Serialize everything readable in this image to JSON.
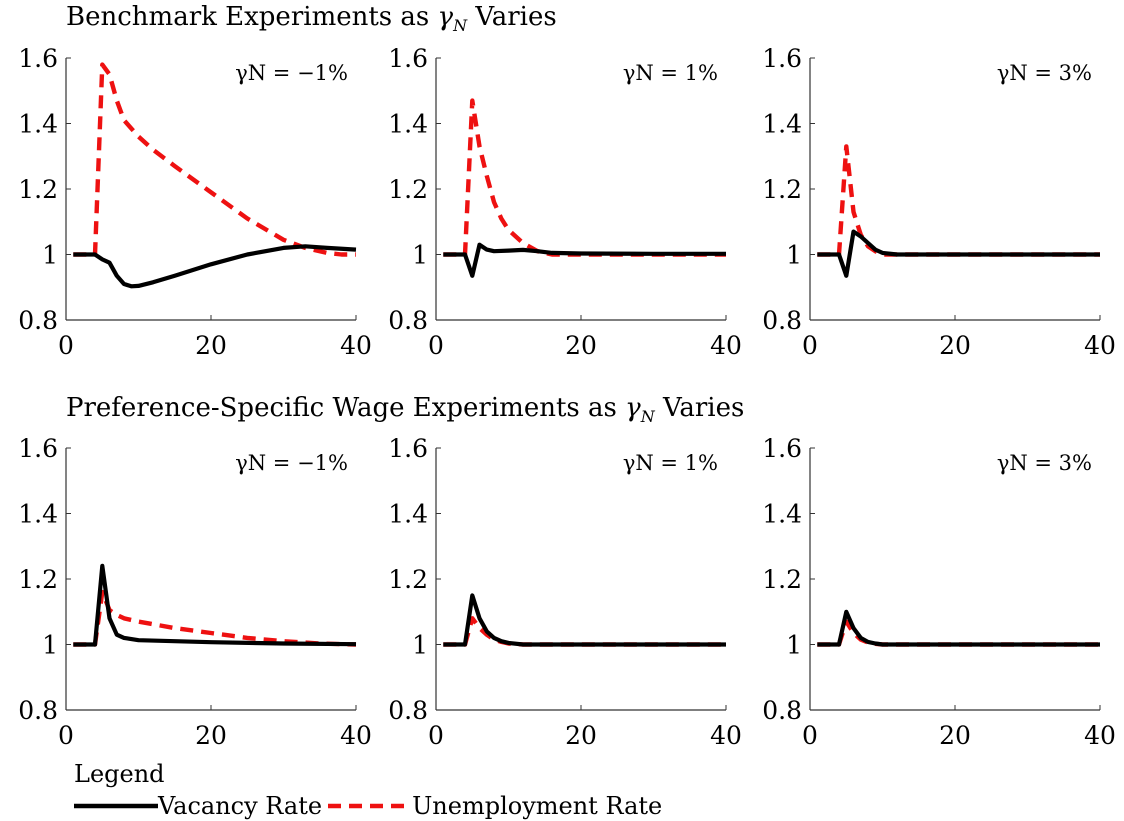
{
  "legend_title": "Legend",
  "legend_items": [
    "Vacancy Rate",
    "Unemployment Rate"
  ],
  "row_titles": [
    {
      "prefix": "Benchmark Experiments as",
      "suffix": "Varies"
    },
    {
      "prefix": "Preference-Specific Wage Experiments as",
      "suffix": "Varies"
    }
  ],
  "colors": {
    "vacancy": "#000000",
    "unemployment": "#ee1111"
  },
  "chart_data": [
    {
      "type": "line",
      "title": "",
      "annotation": "γN = −1%",
      "xlim": [
        0,
        40
      ],
      "ylim": [
        0.8,
        1.6
      ],
      "xticks": [
        0,
        20,
        40
      ],
      "yticks": [
        "0.8",
        "1",
        "1.2",
        "1.4",
        "1.6"
      ],
      "series": [
        {
          "name": "Vacancy Rate",
          "x": [
            1,
            4,
            5,
            6,
            7,
            8,
            9,
            10,
            12,
            15,
            20,
            25,
            30,
            33,
            36,
            40
          ],
          "y": [
            1,
            1,
            0.985,
            0.975,
            0.935,
            0.91,
            0.903,
            0.904,
            0.915,
            0.935,
            0.97,
            1.0,
            1.02,
            1.025,
            1.02,
            1.015
          ]
        },
        {
          "name": "Unemployment Rate",
          "x": [
            1,
            4,
            5,
            6,
            7,
            8,
            10,
            12,
            15,
            20,
            25,
            30,
            33,
            36,
            38,
            40
          ],
          "y": [
            1,
            1,
            1.58,
            1.55,
            1.47,
            1.41,
            1.36,
            1.32,
            1.27,
            1.19,
            1.11,
            1.045,
            1.02,
            1.005,
            1.0,
            1.0
          ]
        }
      ]
    },
    {
      "type": "line",
      "title": "",
      "annotation": "γN = 1%",
      "xlim": [
        0,
        40
      ],
      "ylim": [
        0.8,
        1.6
      ],
      "xticks": [
        0,
        20,
        40
      ],
      "yticks": [
        "0.8",
        "1",
        "1.2",
        "1.4",
        "1.6"
      ],
      "series": [
        {
          "name": "Vacancy Rate",
          "x": [
            1,
            4,
            5,
            6,
            7,
            8,
            10,
            12,
            14,
            16,
            20,
            30,
            40
          ],
          "y": [
            1,
            1,
            0.935,
            1.03,
            1.015,
            1.01,
            1.012,
            1.014,
            1.01,
            1.005,
            1.003,
            1.002,
            1.002
          ]
        },
        {
          "name": "Unemployment Rate",
          "x": [
            1,
            4,
            5,
            6,
            7,
            8,
            9,
            10,
            12,
            14,
            16,
            20,
            40
          ],
          "y": [
            1,
            1,
            1.47,
            1.33,
            1.24,
            1.16,
            1.11,
            1.075,
            1.035,
            1.01,
            1.0,
            1.0,
            1.0
          ]
        }
      ]
    },
    {
      "type": "line",
      "title": "",
      "annotation": "γN = 3%",
      "xlim": [
        0,
        40
      ],
      "ylim": [
        0.8,
        1.6
      ],
      "xticks": [
        0,
        20,
        40
      ],
      "yticks": [
        "0.8",
        "1",
        "1.2",
        "1.4",
        "1.6"
      ],
      "series": [
        {
          "name": "Vacancy Rate",
          "x": [
            1,
            4,
            5,
            6,
            7,
            8,
            9,
            10,
            12,
            20,
            40
          ],
          "y": [
            1,
            1,
            0.935,
            1.07,
            1.055,
            1.035,
            1.015,
            1.005,
            1.0,
            1.0,
            1.0
          ]
        },
        {
          "name": "Unemployment Rate",
          "x": [
            1,
            4,
            5,
            6,
            7,
            8,
            9,
            10,
            12,
            20,
            40
          ],
          "y": [
            1,
            1,
            1.33,
            1.13,
            1.06,
            1.025,
            1.01,
            1.0,
            1.0,
            1.0,
            1.0
          ]
        }
      ]
    },
    {
      "type": "line",
      "title": "",
      "annotation": "γN = −1%",
      "xlim": [
        0,
        40
      ],
      "ylim": [
        0.8,
        1.6
      ],
      "xticks": [
        0,
        20,
        40
      ],
      "yticks": [
        "0.8",
        "1",
        "1.2",
        "1.4",
        "1.6"
      ],
      "series": [
        {
          "name": "Vacancy Rate",
          "x": [
            1,
            4,
            5,
            6,
            7,
            8,
            10,
            15,
            20,
            30,
            40
          ],
          "y": [
            1,
            1,
            1.24,
            1.08,
            1.03,
            1.02,
            1.013,
            1.01,
            1.007,
            1.003,
            1.001
          ]
        },
        {
          "name": "Unemployment Rate",
          "x": [
            1,
            4,
            5,
            6,
            7,
            8,
            10,
            15,
            20,
            25,
            30,
            35,
            40
          ],
          "y": [
            1,
            1,
            1.16,
            1.105,
            1.09,
            1.08,
            1.07,
            1.05,
            1.035,
            1.02,
            1.01,
            1.003,
            1.0
          ]
        }
      ]
    },
    {
      "type": "line",
      "title": "",
      "annotation": "γN = 1%",
      "xlim": [
        0,
        40
      ],
      "ylim": [
        0.8,
        1.6
      ],
      "xticks": [
        0,
        20,
        40
      ],
      "yticks": [
        "0.8",
        "1",
        "1.2",
        "1.4",
        "1.6"
      ],
      "series": [
        {
          "name": "Vacancy Rate",
          "x": [
            1,
            4,
            5,
            6,
            7,
            8,
            9,
            10,
            12,
            40
          ],
          "y": [
            1,
            1,
            1.15,
            1.08,
            1.04,
            1.02,
            1.01,
            1.005,
            1.0,
            1.0
          ]
        },
        {
          "name": "Unemployment Rate",
          "x": [
            1,
            4,
            5,
            6,
            7,
            8,
            9,
            10,
            12,
            40
          ],
          "y": [
            1,
            1,
            1.08,
            1.05,
            1.03,
            1.015,
            1.008,
            1.003,
            1.0,
            1.0
          ]
        }
      ]
    },
    {
      "type": "line",
      "title": "",
      "annotation": "γN = 3%",
      "xlim": [
        0,
        40
      ],
      "ylim": [
        0.8,
        1.6
      ],
      "xticks": [
        0,
        20,
        40
      ],
      "yticks": [
        "0.8",
        "1",
        "1.2",
        "1.4",
        "1.6"
      ],
      "series": [
        {
          "name": "Vacancy Rate",
          "x": [
            1,
            4,
            5,
            6,
            7,
            8,
            9,
            10,
            40
          ],
          "y": [
            1,
            1,
            1.1,
            1.05,
            1.02,
            1.008,
            1.003,
            1.0,
            1.0
          ]
        },
        {
          "name": "Unemployment Rate",
          "x": [
            1,
            4,
            5,
            6,
            7,
            8,
            9,
            10,
            40
          ],
          "y": [
            1,
            1,
            1.07,
            1.035,
            1.015,
            1.006,
            1.002,
            1.0,
            1.0
          ]
        }
      ]
    }
  ]
}
